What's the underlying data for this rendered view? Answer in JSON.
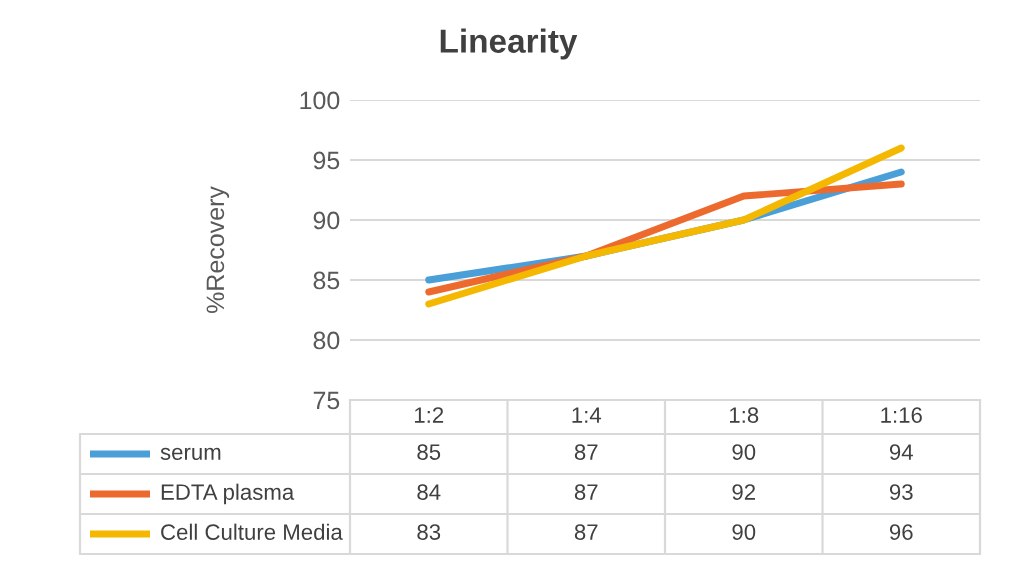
{
  "chart_data": {
    "type": "line",
    "title": "Linearity",
    "ylabel": "%Recovery",
    "categories": [
      "1:2",
      "1:4",
      "1:8",
      "1:16"
    ],
    "series": [
      {
        "name": "serum",
        "color": "#4a9fd8",
        "values": [
          85,
          87,
          90,
          94
        ]
      },
      {
        "name": "EDTA plasma",
        "color": "#ed6a2f",
        "values": [
          84,
          87,
          92,
          93
        ]
      },
      {
        "name": "Cell Culture Media",
        "color": "#f5b800",
        "values": [
          83,
          87,
          90,
          96
        ]
      }
    ],
    "ylim": [
      75,
      100
    ],
    "yticks": [
      75,
      80,
      85,
      90,
      95,
      100
    ],
    "grid": "y",
    "data_labels": true,
    "legend": "bottom",
    "marker": "none",
    "line_style": "solid"
  }
}
